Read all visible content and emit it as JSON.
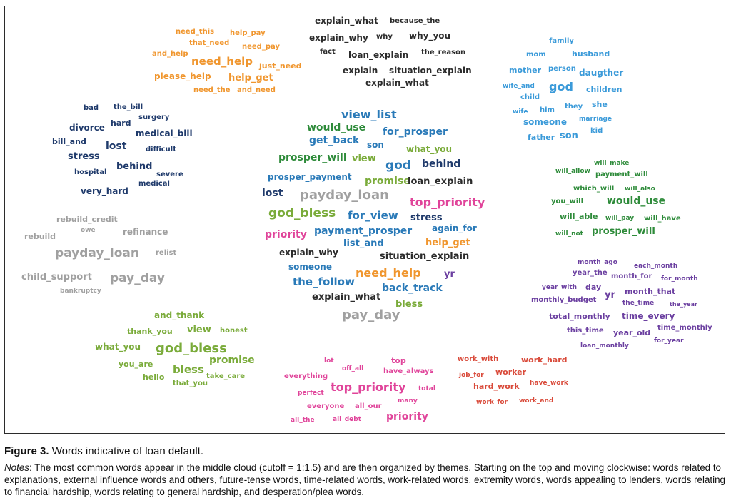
{
  "colors": {
    "explanation": "#2b2b2b",
    "family": "#3a9ad9",
    "future": "#2e8b3a",
    "time": "#6b3fa0",
    "work": "#d94a3a",
    "extremity": "#e0449a",
    "appeal": "#7aab3a",
    "financial": "#a0a0a0",
    "hardship": "#1f3a6b",
    "plea": "#f0962e",
    "center_blue": "#2a7ab8"
  },
  "clusters": {
    "explanation": [
      "explain_what",
      "because_the",
      "explain_why",
      "why",
      "why_you",
      "fact",
      "loan_explain",
      "the_reason",
      "explain",
      "situation_explain",
      "explain_what"
    ],
    "plea": [
      "need_this",
      "help_pay",
      "that_need",
      "need_pay",
      "and_help",
      "need_help",
      "just_need",
      "please_help",
      "help_get",
      "need_the",
      "and_need"
    ],
    "family": [
      "family",
      "mom",
      "husband",
      "mother",
      "person",
      "daugther",
      "wife_and",
      "god",
      "children",
      "child",
      "she",
      "wife",
      "him",
      "they",
      "marriage",
      "someone",
      "kid",
      "father",
      "son"
    ],
    "hardship": [
      "bad",
      "the_bill",
      "divorce",
      "hard",
      "surgery",
      "bill_and",
      "medical_bill",
      "lost",
      "difficult",
      "stress",
      "behind",
      "hospital",
      "severe",
      "medical",
      "very_hard"
    ],
    "financial": [
      "rebuild_credit",
      "owe",
      "rebuild",
      "refinance",
      "payday_loan",
      "relist",
      "child_support",
      "pay_day",
      "bankruptcy"
    ],
    "future": [
      "will_make",
      "will_allow",
      "payment_will",
      "which_will",
      "will_also",
      "you_will",
      "would_use",
      "will_able",
      "will_pay",
      "will_have",
      "will_not",
      "prosper_will"
    ],
    "time": [
      "month_ago",
      "each_month",
      "year_the",
      "month_for",
      "for_month",
      "year_with",
      "day",
      "month_that",
      "monthly_budget",
      "yr",
      "the_time",
      "the_year",
      "total_monthly",
      "time_every",
      "this_time",
      "year_old",
      "time_monthly",
      "for_year",
      "loan_monthly"
    ],
    "appeal": [
      "and_thank",
      "thank_you",
      "view",
      "honest",
      "what_you",
      "god_bless",
      "promise",
      "you_are",
      "bless",
      "hello",
      "take_care",
      "that_you"
    ],
    "extremity": [
      "lot",
      "top",
      "off_all",
      "have_always",
      "everything",
      "top_priority",
      "total",
      "perfect",
      "many",
      "everyone",
      "all_our",
      "priority",
      "all_the",
      "all_debt"
    ],
    "work": [
      "work_with",
      "work_hard",
      "job_for",
      "worker",
      "hard_work",
      "have_work",
      "work_for",
      "work_and"
    ],
    "center": [
      "view_list",
      "would_use",
      "for_prosper",
      "get_back",
      "son",
      "what_you",
      "prosper_will",
      "view",
      "behind",
      "god",
      "prosper_payment",
      "promise",
      "loan_explain",
      "lost",
      "payday_loan",
      "top_priority",
      "god_bless",
      "for_view",
      "stress",
      "priority",
      "payment_prosper",
      "again_for",
      "list_and",
      "help_get",
      "explain_why",
      "situation_explain",
      "someone",
      "yr",
      "need_help",
      "the_follow",
      "back_track",
      "explain_what",
      "bless",
      "pay_day"
    ]
  },
  "caption": {
    "label": "Figure 3.",
    "title": "Words indicative of loan default.",
    "notes_label": "Notes",
    "notes_text": ": The most common words appear in the middle cloud (cutoff = 1:1.5) and are then organized by themes. Starting on the top and moving clockwise: words related to explanations, external influence words and others, future-tense words, time-related words, work-related words, extremity words, words appealing to lenders, words relating to financial hardship, words relating to general hardship, and desperation/plea words."
  }
}
